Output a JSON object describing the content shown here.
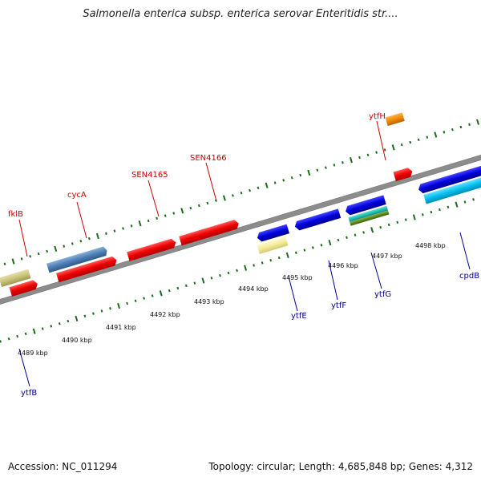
{
  "title": "Salmonella enterica subsp. enterica serovar Enteritidis str....",
  "footer": {
    "accession": "Accession: NC_011294",
    "summary": "Topology: circular; Length: 4,685,848 bp; Genes: 4,312"
  },
  "colors": {
    "plus_label": "#cc0000",
    "minus_label": "#000099",
    "ticks": "#1a6b1a",
    "backbone": "#8c8c8c"
  },
  "scale": {
    "unit": "kbp",
    "ticks": [
      "4489 kbp",
      "4490 kbp",
      "4491 kbp",
      "4492 kbp",
      "4493 kbp",
      "4494 kbp",
      "4495 kbp",
      "4496 kbp",
      "4497 kbp",
      "4498 kbp"
    ]
  },
  "genes_plus": [
    {
      "name": "fklB",
      "color": "#d0cc84"
    },
    {
      "name": "cycA",
      "color": "#4d7fb5"
    },
    {
      "name": "SEN4165",
      "color": "#ee1111"
    },
    {
      "name": "SEN4166",
      "color": "#ee1111"
    },
    {
      "name": "ytfH",
      "color": "#f08a00"
    }
  ],
  "genes_minus": [
    {
      "name": "ytfB",
      "color": "#0000dd"
    },
    {
      "name": "ytfE",
      "color": "#0000dd"
    },
    {
      "name": "ytfF",
      "color": "#0000dd"
    },
    {
      "name": "ytfG",
      "color": "#0000dd"
    },
    {
      "name": "cpdB",
      "color": "#0000dd"
    }
  ]
}
